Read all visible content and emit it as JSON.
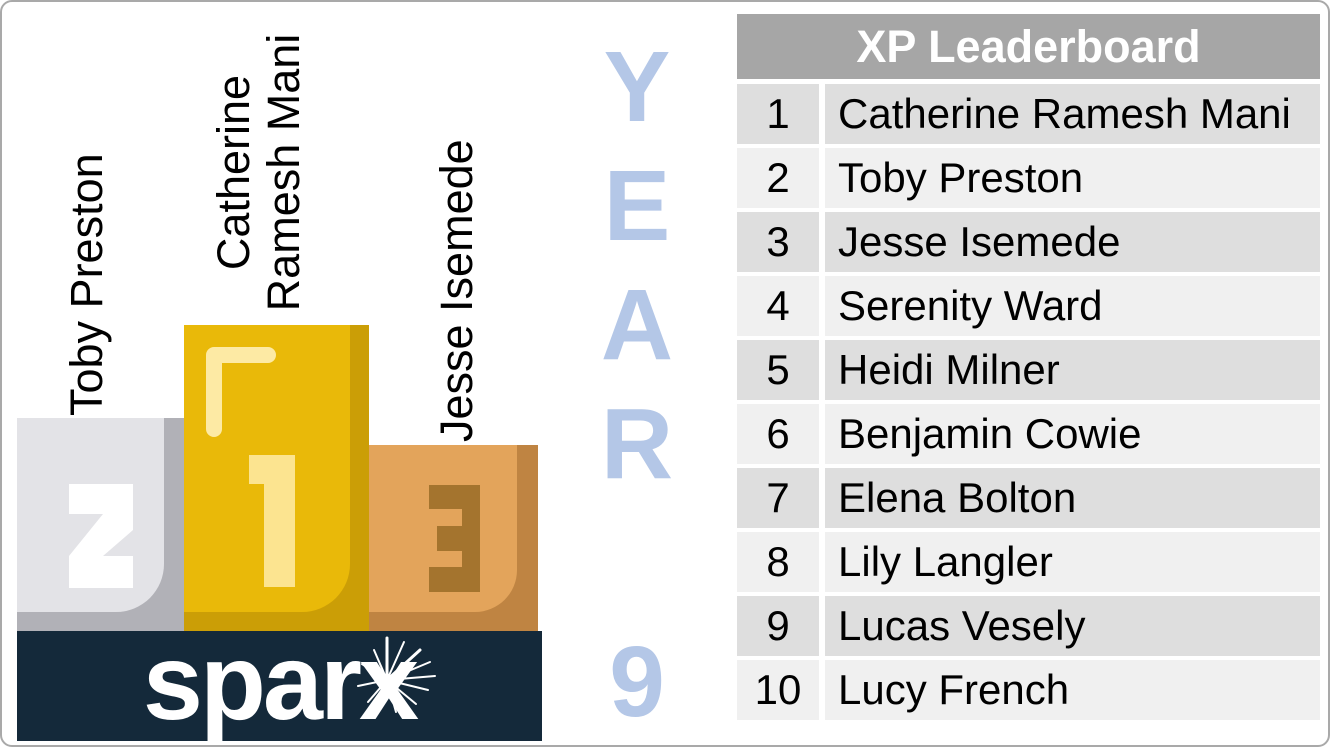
{
  "podium": {
    "brand": "sparx",
    "labels": {
      "first_line1": "Catherine",
      "first_line2": "Ramesh Mani",
      "second": "Toby Preston",
      "third": "Jesse Isemede"
    },
    "ranks": {
      "first": "1",
      "second": "2",
      "third": "3"
    }
  },
  "year_label": {
    "value": "YEAR 9",
    "lines": [
      "Y",
      "E",
      "A",
      "R",
      "",
      "9"
    ]
  },
  "leaderboard": {
    "title": "XP Leaderboard",
    "rows": [
      {
        "rank": "1",
        "name": "Catherine Ramesh Mani"
      },
      {
        "rank": "2",
        "name": "Toby Preston"
      },
      {
        "rank": "3",
        "name": "Jesse Isemede"
      },
      {
        "rank": "4",
        "name": "Serenity Ward"
      },
      {
        "rank": "5",
        "name": "Heidi Milner"
      },
      {
        "rank": "6",
        "name": "Benjamin Cowie"
      },
      {
        "rank": "7",
        "name": "Elena Bolton"
      },
      {
        "rank": "8",
        "name": "Lily Langler"
      },
      {
        "rank": "9",
        "name": "Lucas Vesely"
      },
      {
        "rank": "10",
        "name": "Lucy French"
      }
    ]
  },
  "colors": {
    "border": "#a9a9a9",
    "navy": "#14293a",
    "gold": "#e9b909",
    "gold_dark": "#cb9e06",
    "silver": "#e3e3e7",
    "silver_dark": "#b1b1b7",
    "bronze": "#e3a45b",
    "bronze_dark": "#bf8442",
    "bronze_numeral": "#a4742e",
    "numeral_light": "#fce490",
    "shine": "#fdeaa4",
    "year_text": "#b4c7e7",
    "header_bg": "#a6a6a6",
    "header_text": "#ffffff",
    "row_odd_bg": "#dedede",
    "row_even_bg": "#f0f0f0"
  }
}
